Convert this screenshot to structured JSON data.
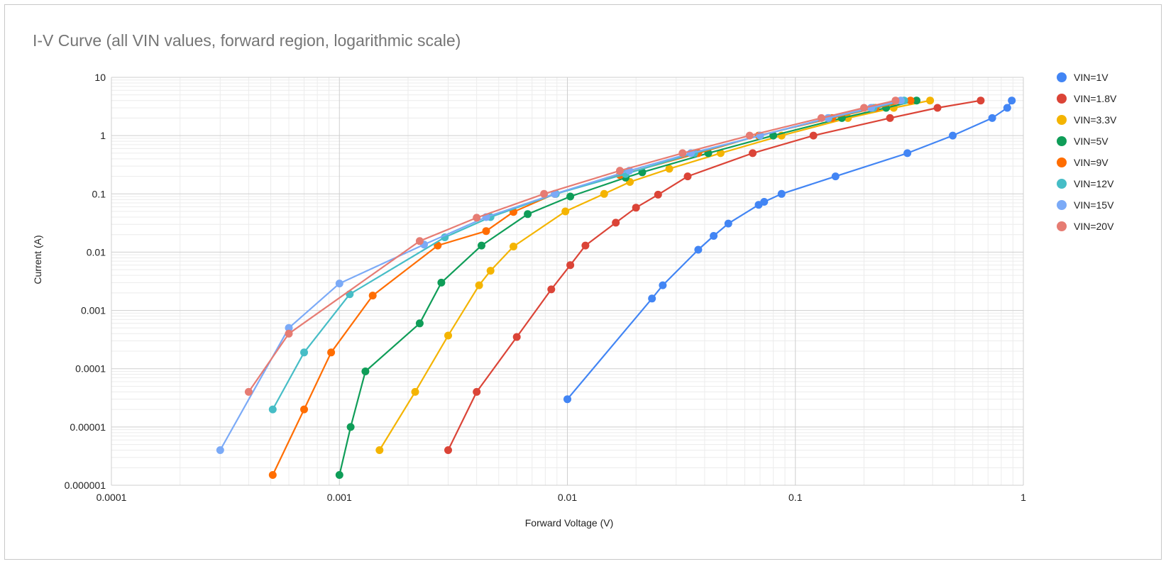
{
  "chart_data": {
    "type": "line",
    "title": "I-V Curve (all VIN values, forward region, logarithmic scale)",
    "xlabel": "Forward Voltage (V)",
    "ylabel": "Current (A)",
    "x_scale": "log",
    "y_scale": "log",
    "xlim": [
      0.0001,
      1
    ],
    "ylim": [
      1e-06,
      10
    ],
    "x_ticks": [
      "0.0001",
      "0.001",
      "0.01",
      "0.1",
      "1"
    ],
    "y_ticks": [
      "0.000001",
      "0.00001",
      "0.0001",
      "0.001",
      "0.01",
      "0.1",
      "1",
      "10"
    ],
    "grid": true,
    "legend_position": "right",
    "series": [
      {
        "name": "VIN=1V",
        "color": "#4285F4",
        "points": [
          [
            0.01,
            3e-05
          ],
          [
            0.0235,
            0.0016
          ],
          [
            0.0262,
            0.0027
          ],
          [
            0.0375,
            0.011
          ],
          [
            0.0438,
            0.019
          ],
          [
            0.0508,
            0.031
          ],
          [
            0.069,
            0.065
          ],
          [
            0.073,
            0.073
          ],
          [
            0.087,
            0.1
          ],
          [
            0.15,
            0.2
          ],
          [
            0.31,
            0.5
          ],
          [
            0.49,
            1.0
          ],
          [
            0.73,
            2.0
          ],
          [
            0.85,
            3.0
          ],
          [
            0.89,
            4.0
          ]
        ]
      },
      {
        "name": "VIN=1.8V",
        "color": "#DB4437",
        "points": [
          [
            0.003,
            4e-06
          ],
          [
            0.004,
            4e-05
          ],
          [
            0.006,
            0.00035
          ],
          [
            0.0085,
            0.0023
          ],
          [
            0.0103,
            0.006
          ],
          [
            0.012,
            0.013
          ],
          [
            0.0163,
            0.032
          ],
          [
            0.02,
            0.058
          ],
          [
            0.025,
            0.097
          ],
          [
            0.0337,
            0.2
          ],
          [
            0.065,
            0.5
          ],
          [
            0.12,
            1.0
          ],
          [
            0.26,
            2.0
          ],
          [
            0.42,
            3.0
          ],
          [
            0.65,
            4.0
          ]
        ]
      },
      {
        "name": "VIN=3.3V",
        "color": "#F4B400",
        "points": [
          [
            0.0015,
            4e-06
          ],
          [
            0.00215,
            4e-05
          ],
          [
            0.003,
            0.00037
          ],
          [
            0.0041,
            0.0027
          ],
          [
            0.0046,
            0.0048
          ],
          [
            0.0058,
            0.0125
          ],
          [
            0.0098,
            0.05
          ],
          [
            0.0145,
            0.1
          ],
          [
            0.0188,
            0.16
          ],
          [
            0.028,
            0.27
          ],
          [
            0.047,
            0.5
          ],
          [
            0.087,
            1.0
          ],
          [
            0.17,
            2.0
          ],
          [
            0.27,
            3.0
          ],
          [
            0.39,
            4.0
          ]
        ]
      },
      {
        "name": "VIN=5V",
        "color": "#0F9D58",
        "points": [
          [
            0.001,
            1.5e-06
          ],
          [
            0.00112,
            1e-05
          ],
          [
            0.0013,
            9e-05
          ],
          [
            0.00225,
            0.0006
          ],
          [
            0.0028,
            0.003
          ],
          [
            0.0042,
            0.013
          ],
          [
            0.0067,
            0.045
          ],
          [
            0.0103,
            0.09
          ],
          [
            0.018,
            0.19
          ],
          [
            0.0213,
            0.235
          ],
          [
            0.0415,
            0.5
          ],
          [
            0.08,
            1.0
          ],
          [
            0.16,
            2.0
          ],
          [
            0.25,
            3.0
          ],
          [
            0.34,
            4.0
          ]
        ]
      },
      {
        "name": "VIN=9V",
        "color": "#FF6D01",
        "points": [
          [
            0.00051,
            1.5e-06
          ],
          [
            0.0007,
            2e-05
          ],
          [
            0.00092,
            0.00019
          ],
          [
            0.0014,
            0.0018
          ],
          [
            0.0027,
            0.013
          ],
          [
            0.0044,
            0.023
          ],
          [
            0.0058,
            0.049
          ],
          [
            0.0088,
            0.1
          ],
          [
            0.017,
            0.21
          ],
          [
            0.0375,
            0.5
          ],
          [
            0.069,
            1.0
          ],
          [
            0.145,
            2.0
          ],
          [
            0.225,
            3.0
          ],
          [
            0.32,
            4.0
          ]
        ]
      },
      {
        "name": "VIN=12V",
        "color": "#46BDC6",
        "points": [
          [
            0.00051,
            2e-05
          ],
          [
            0.0007,
            0.00019
          ],
          [
            0.00111,
            0.0019
          ],
          [
            0.0029,
            0.018
          ],
          [
            0.0046,
            0.04
          ],
          [
            0.0089,
            0.1
          ],
          [
            0.018,
            0.22
          ],
          [
            0.036,
            0.5
          ],
          [
            0.07,
            1.0
          ],
          [
            0.14,
            2.0
          ],
          [
            0.22,
            3.0
          ],
          [
            0.3,
            4.0
          ]
        ]
      },
      {
        "name": "VIN=15V",
        "color": "#7BAAF7",
        "points": [
          [
            0.0003,
            4e-06
          ],
          [
            0.0006,
            0.0005
          ],
          [
            0.001,
            0.0029
          ],
          [
            0.00235,
            0.0135
          ],
          [
            0.0044,
            0.04
          ],
          [
            0.0088,
            0.1
          ],
          [
            0.0187,
            0.25
          ],
          [
            0.0348,
            0.5
          ],
          [
            0.07,
            1.0
          ],
          [
            0.139,
            2.0
          ],
          [
            0.215,
            3.0
          ],
          [
            0.29,
            4.0
          ]
        ]
      },
      {
        "name": "VIN=20V",
        "color": "#E67C73",
        "points": [
          [
            0.0004,
            4e-05
          ],
          [
            0.0006,
            0.0004
          ],
          [
            0.00225,
            0.0155
          ],
          [
            0.004,
            0.039
          ],
          [
            0.0079,
            0.1
          ],
          [
            0.017,
            0.25
          ],
          [
            0.032,
            0.5
          ],
          [
            0.063,
            1.0
          ],
          [
            0.13,
            2.0
          ],
          [
            0.2,
            3.0
          ],
          [
            0.275,
            4.0
          ]
        ]
      }
    ]
  }
}
